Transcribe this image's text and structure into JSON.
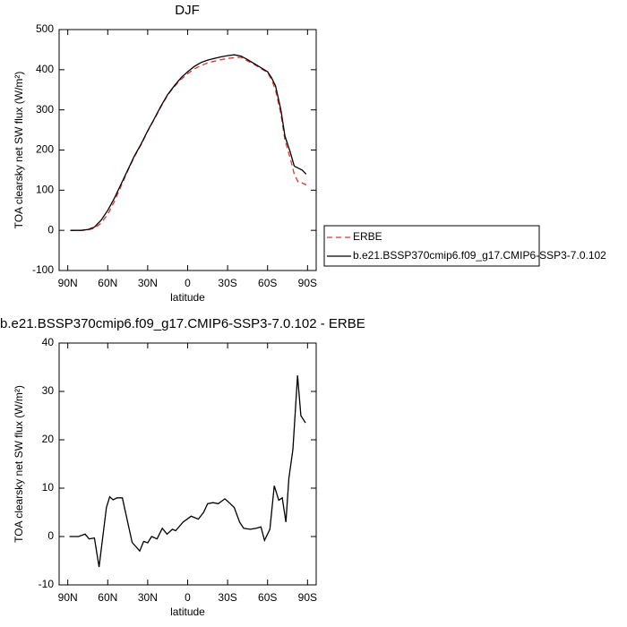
{
  "chart_data": [
    {
      "type": "line",
      "title": "DJF",
      "xlabel": "latitude",
      "ylabel": "TOA clearsky net SW flux (W/m²)",
      "x": [
        88,
        80,
        75,
        70,
        65,
        60,
        55,
        50,
        45,
        40,
        35,
        30,
        25,
        20,
        15,
        10,
        5,
        0,
        -5,
        -10,
        -15,
        -20,
        -25,
        -30,
        -35,
        -40,
        -45,
        -50,
        -55,
        -60,
        -63,
        -66,
        -70,
        -73,
        -77,
        -80,
        -83,
        -86,
        -89
      ],
      "series": [
        {
          "name": "ERBE",
          "color": "#e8302a",
          "dash": true,
          "values": [
            0,
            0,
            1,
            5,
            18,
            40,
            72,
            110,
            148,
            183,
            213,
            247,
            277,
            308,
            337,
            358,
            376,
            390,
            402,
            410,
            417,
            421,
            425,
            428,
            430,
            431,
            422,
            413,
            403,
            393,
            375,
            350,
            290,
            225,
            180,
            140,
            120,
            118,
            113
          ]
        },
        {
          "name": "b.e21.BSSP370cmip6.f09_g17.CMIP6-SSP3-7.0.102",
          "color": "#000000",
          "dash": false,
          "values": [
            0,
            0,
            2,
            8,
            25,
            50,
            80,
            115,
            150,
            185,
            215,
            248,
            278,
            310,
            338,
            360,
            380,
            395,
            408,
            418,
            424,
            428,
            432,
            435,
            437,
            434,
            425,
            415,
            405,
            395,
            380,
            360,
            300,
            235,
            195,
            160,
            155,
            150,
            140
          ]
        }
      ],
      "xlim": [
        96.5,
        -96.5
      ],
      "xticks": [
        {
          "value": 90,
          "label": "90N"
        },
        {
          "value": 60,
          "label": "60N"
        },
        {
          "value": 30,
          "label": "30N"
        },
        0,
        {
          "value": -30,
          "label": "30S"
        },
        {
          "value": -60,
          "label": "60S"
        },
        {
          "value": -90,
          "label": "90S"
        }
      ],
      "ylim": [
        -100,
        500
      ],
      "yticks": [
        -100,
        0,
        100,
        200,
        300,
        400,
        500
      ],
      "legend": "outside-right"
    },
    {
      "type": "line",
      "title": "b.e21.BSSP370cmip6.f09_g17.CMIP6-SSP3-7.0.102 - ERBE",
      "xlabel": "latitude",
      "ylabel": "TOA clearsky net SW flux (W/m²)",
      "x": [
        88.7,
        82,
        77,
        74,
        70,
        66.5,
        61,
        58.5,
        56,
        53,
        49,
        41.7,
        36,
        33,
        30,
        27,
        23,
        19,
        15.5,
        11.5,
        9,
        3.4,
        -2.6,
        -8,
        -12,
        -15,
        -19,
        -23,
        -28,
        -32,
        -35,
        -39,
        -42,
        -47,
        -51.6,
        -55,
        -57.7,
        -61.7,
        -65,
        -68.4,
        -71,
        -73.8,
        -76,
        -79,
        -82.5,
        -85,
        -88.5
      ],
      "series": [
        {
          "color": "#000000",
          "values": [
            0,
            0,
            0.5,
            -0.5,
            -0.3,
            -6.3,
            6,
            8.2,
            7.6,
            8,
            8,
            -1.2,
            -3,
            -1,
            -1.3,
            0,
            -0.5,
            1.7,
            0.5,
            1.5,
            1.2,
            3,
            4.2,
            3.6,
            5,
            6.8,
            7,
            6.8,
            7.8,
            6.8,
            6,
            3,
            1.7,
            1.5,
            1.7,
            2,
            -0.8,
            1.5,
            10.5,
            7.5,
            8,
            3,
            12,
            18,
            33.3,
            25,
            23.5
          ]
        }
      ],
      "xlim": [
        96.5,
        -96.5
      ],
      "xticks": [
        {
          "value": 90,
          "label": "90N"
        },
        {
          "value": 60,
          "label": "60N"
        },
        {
          "value": 30,
          "label": "30N"
        },
        0,
        {
          "value": -30,
          "label": "30S"
        },
        {
          "value": -60,
          "label": "60S"
        },
        {
          "value": -90,
          "label": "90S"
        }
      ],
      "ylim": [
        -10,
        40
      ],
      "yticks": [
        -10,
        0,
        10,
        20,
        30,
        40
      ]
    }
  ]
}
